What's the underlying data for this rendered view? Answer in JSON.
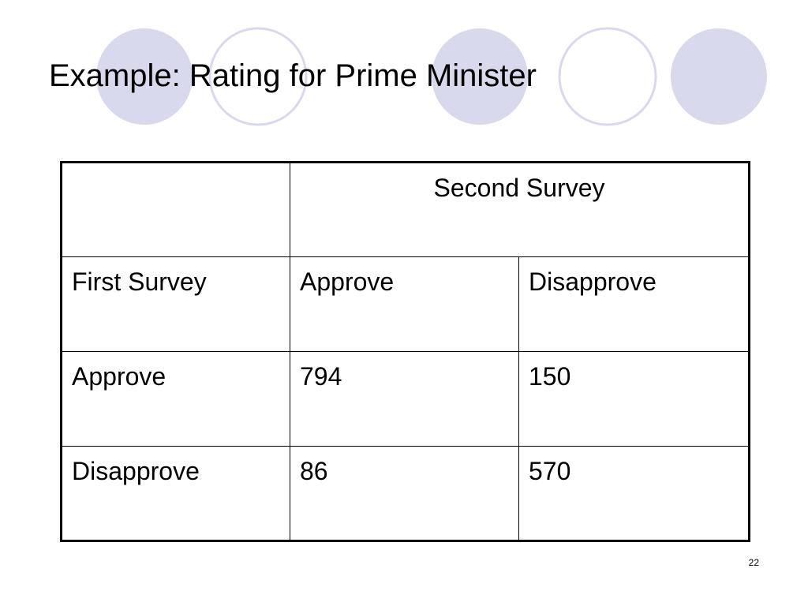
{
  "slide": {
    "title": "Example: Rating for Prime Minister",
    "page_number": "22"
  },
  "decoration": {
    "circle_fill": "#d9d9ee",
    "circle_stroke": "#d9d9ee"
  },
  "table": {
    "header": {
      "top_left": "",
      "second_survey": "Second Survey"
    },
    "subheader": [
      "First Survey",
      "Approve",
      "Disapprove"
    ],
    "rows": [
      {
        "label": "Approve",
        "values": [
          "794",
          "150"
        ]
      },
      {
        "label": "Disapprove",
        "values": [
          "86",
          "570"
        ]
      }
    ]
  }
}
